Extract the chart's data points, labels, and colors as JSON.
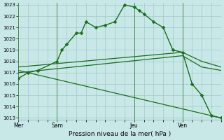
{
  "background_color": "#c8e8e8",
  "grid_color": "#a0c8c8",
  "line_color": "#1a6e1a",
  "title": "Pression niveau de la mer( hPa )",
  "ylabel_min": 1013,
  "ylabel_max": 1023,
  "yticks": [
    1013,
    1014,
    1015,
    1016,
    1017,
    1018,
    1019,
    1020,
    1021,
    1022,
    1023
  ],
  "day_labels": [
    "Mer",
    "Sam",
    "Jeu",
    "Ven"
  ],
  "day_positions": [
    0,
    8,
    24,
    34
  ],
  "xlim": [
    0,
    42
  ],
  "lines": [
    {
      "x": [
        0,
        2,
        4,
        8,
        9,
        10,
        12,
        13,
        14,
        16,
        18,
        20,
        22,
        24,
        25,
        26,
        28,
        30,
        32,
        34,
        36,
        38,
        40,
        42
      ],
      "y": [
        1016.5,
        1017.0,
        1017.2,
        1018.0,
        1019.0,
        1019.5,
        1020.5,
        1020.5,
        1021.5,
        1021.0,
        1021.2,
        1021.5,
        1023.0,
        1022.8,
        1022.5,
        1022.2,
        1021.5,
        1021.0,
        1019.0,
        1018.8,
        1016.0,
        1015.0,
        1013.2,
        1013.0
      ],
      "marker": "D",
      "markersize": 2.5,
      "lw": 1.0
    },
    {
      "x": [
        0,
        34,
        38,
        42
      ],
      "y": [
        1017.5,
        1018.8,
        1018.0,
        1017.5
      ],
      "marker": null,
      "lw": 0.9
    },
    {
      "x": [
        0,
        34,
        38,
        42
      ],
      "y": [
        1017.0,
        1018.5,
        1017.5,
        1017.2
      ],
      "marker": null,
      "lw": 0.9
    },
    {
      "x": [
        0,
        42
      ],
      "y": [
        1017.2,
        1013.0
      ],
      "marker": null,
      "lw": 0.9
    }
  ]
}
